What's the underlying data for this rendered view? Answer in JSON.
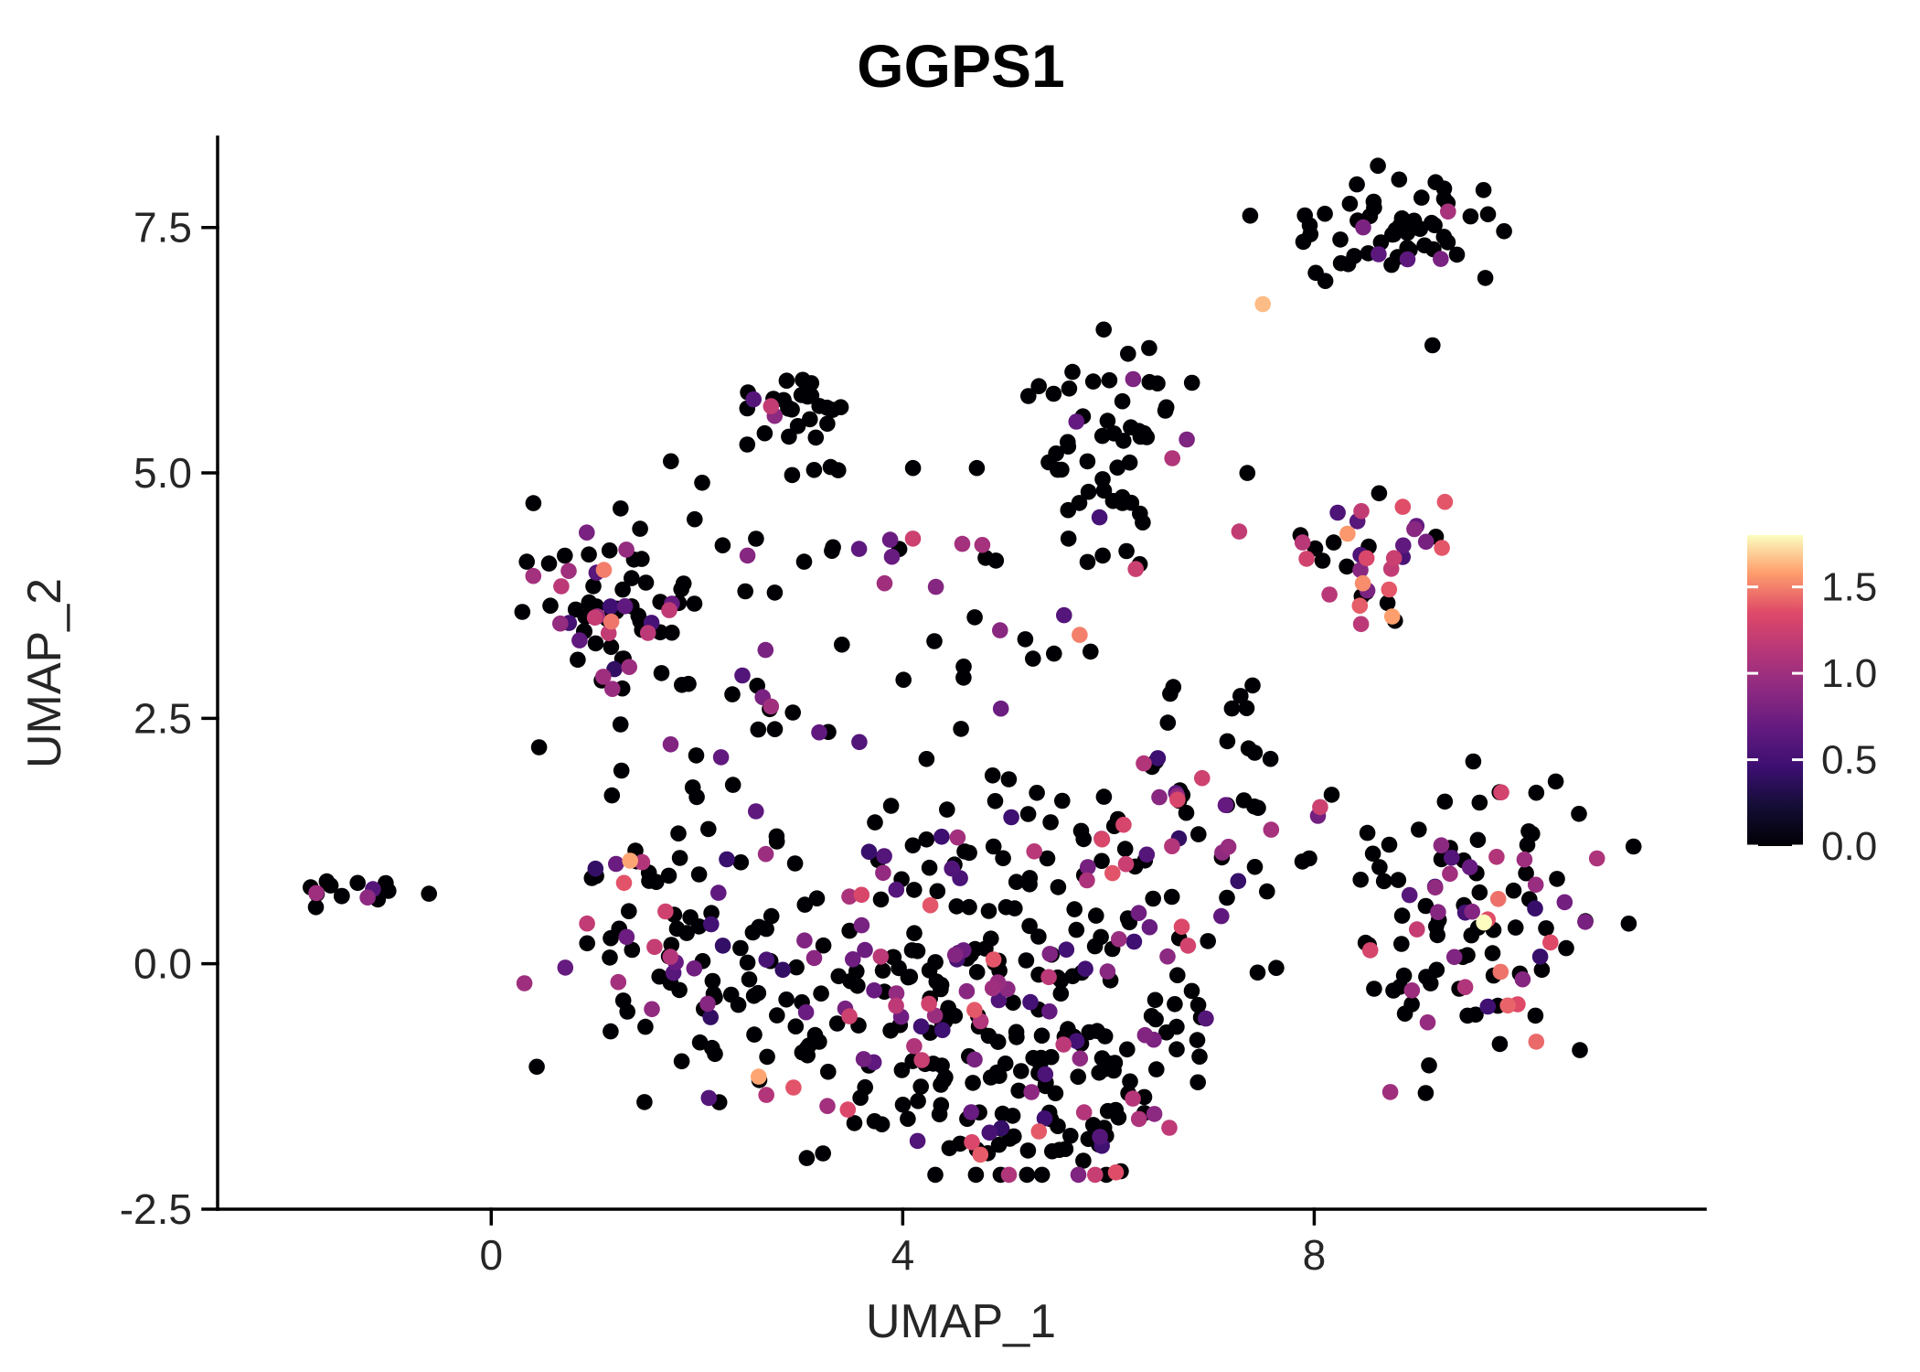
{
  "chart_data": {
    "type": "scatter",
    "title": "GGPS1",
    "xlabel": "UMAP_1",
    "ylabel": "UMAP_2",
    "xlim": [
      -2.66,
      11.8
    ],
    "ylim": [
      -2.5,
      8.42
    ],
    "xticks": [
      "0",
      "4",
      "8"
    ],
    "xtick_values": [
      0,
      4,
      8
    ],
    "yticks": [
      "-2.5",
      "0.0",
      "2.5",
      "5.0",
      "7.5"
    ],
    "ytick_values": [
      -2.5,
      0.0,
      2.5,
      5.0,
      7.5
    ],
    "grid": false,
    "legend_position": "right",
    "background": "#ffffff",
    "axis_color": "#000000",
    "zero_expression_color": "#000004",
    "seed": 7,
    "colorbar": {
      "colormap": "magma",
      "vmin": 0.0,
      "vmax": 1.8,
      "tick_labels": [
        "1.5",
        "1.0",
        "0.5",
        "0.0"
      ],
      "tick_values": [
        1.5,
        1.0,
        0.5,
        0.0
      ],
      "stops": [
        {
          "t": 0.0,
          "color": "#000004"
        },
        {
          "t": 0.13,
          "color": "#140e36"
        },
        {
          "t": 0.25,
          "color": "#3b0f70"
        },
        {
          "t": 0.38,
          "color": "#641a80"
        },
        {
          "t": 0.5,
          "color": "#8c2981"
        },
        {
          "t": 0.63,
          "color": "#b73779"
        },
        {
          "t": 0.75,
          "color": "#de4968"
        },
        {
          "t": 0.88,
          "color": "#fe9f6d"
        },
        {
          "t": 1.0,
          "color": "#fcfdbf"
        }
      ]
    },
    "clusters": [
      {
        "name": "far-left-island",
        "cx": -1.35,
        "cy": 0.72,
        "sx": 0.27,
        "sy": 0.09,
        "n": 13,
        "frac": 0.1,
        "vmin": 0.5,
        "vmax": 1.1
      },
      {
        "name": "left-cluster",
        "cx": 1.2,
        "cy": 3.7,
        "sx": 0.42,
        "sy": 0.55,
        "n": 75,
        "frac": 0.35,
        "vmin": 0.4,
        "vmax": 1.5
      },
      {
        "name": "top-middle-cluster",
        "cx": 2.95,
        "cy": 5.62,
        "sx": 0.3,
        "sy": 0.28,
        "n": 30,
        "frac": 0.1,
        "vmin": 0.5,
        "vmax": 1.2
      },
      {
        "name": "center-top-cluster",
        "cx": 6.05,
        "cy": 5.3,
        "sx": 0.42,
        "sy": 0.45,
        "n": 52,
        "frac": 0.06,
        "vmin": 0.5,
        "vmax": 1.2
      },
      {
        "name": "top-right-cluster-a",
        "cx": 8.35,
        "cy": 7.5,
        "sx": 0.3,
        "sy": 0.26,
        "n": 18,
        "frac": 0.18,
        "vmin": 0.5,
        "vmax": 1.3
      },
      {
        "name": "top-right-cluster-b",
        "cx": 9.05,
        "cy": 7.5,
        "sx": 0.32,
        "sy": 0.28,
        "n": 40,
        "frac": 0.1,
        "vmin": 0.5,
        "vmax": 1.1
      },
      {
        "name": "right-middle-cluster",
        "cx": 8.6,
        "cy": 4.15,
        "sx": 0.35,
        "sy": 0.4,
        "n": 38,
        "frac": 0.5,
        "vmin": 0.5,
        "vmax": 1.7
      },
      {
        "name": "right-bottom-cluster",
        "cx": 9.6,
        "cy": 0.45,
        "sx": 0.55,
        "sy": 0.75,
        "n": 105,
        "frac": 0.32,
        "vmin": 0.4,
        "vmax": 1.5
      },
      {
        "name": "mid-band",
        "cx": 4.2,
        "cy": 4.22,
        "sx": 1.25,
        "sy": 0.12,
        "n": 18,
        "frac": 0.65,
        "vmin": 0.5,
        "vmax": 1.4
      },
      {
        "name": "mid-sparse",
        "cx": 4.5,
        "cy": 3.3,
        "sx": 1.3,
        "sy": 0.45,
        "n": 20,
        "frac": 0.4,
        "vmin": 0.5,
        "vmax": 1.5
      },
      {
        "name": "left-link",
        "cx": 2.4,
        "cy": 2.4,
        "sx": 0.4,
        "sy": 0.4,
        "n": 12,
        "frac": 0.25,
        "vmin": 0.5,
        "vmax": 1.1
      },
      {
        "name": "right-link",
        "cx": 7.6,
        "cy": 1.5,
        "sx": 0.3,
        "sy": 0.55,
        "n": 12,
        "frac": 0.3,
        "vmin": 0.5,
        "vmax": 1.3
      },
      {
        "name": "blob-left-arm",
        "cx": 1.7,
        "cy": 0.6,
        "sx": 0.5,
        "sy": 0.9,
        "n": 70,
        "frac": 0.3,
        "vmin": 0.4,
        "vmax": 1.4
      },
      {
        "name": "blob-mid-left",
        "cx": 3.0,
        "cy": -0.3,
        "sx": 0.7,
        "sy": 0.8,
        "n": 60,
        "frac": 0.3,
        "vmin": 0.4,
        "vmax": 1.4
      },
      {
        "name": "blob-bottom-left",
        "cx": 4.3,
        "cy": -0.8,
        "sx": 0.8,
        "sy": 0.6,
        "n": 80,
        "frac": 0.3,
        "vmin": 0.4,
        "vmax": 1.4
      },
      {
        "name": "blob-bottom-right",
        "cx": 5.5,
        "cy": -0.9,
        "sx": 0.7,
        "sy": 0.6,
        "n": 70,
        "frac": 0.28,
        "vmin": 0.4,
        "vmax": 1.4
      },
      {
        "name": "blob-center",
        "cx": 4.8,
        "cy": 0.8,
        "sx": 1.0,
        "sy": 0.7,
        "n": 80,
        "frac": 0.3,
        "vmin": 0.4,
        "vmax": 1.4
      },
      {
        "name": "blob-right",
        "cx": 6.3,
        "cy": 0.5,
        "sx": 0.6,
        "sy": 0.9,
        "n": 60,
        "frac": 0.28,
        "vmin": 0.4,
        "vmax": 1.4
      },
      {
        "name": "blob-upper-right",
        "cx": 6.9,
        "cy": 1.6,
        "sx": 0.4,
        "sy": 0.5,
        "n": 25,
        "frac": 0.3,
        "vmin": 0.4,
        "vmax": 1.4
      },
      {
        "name": "blob-bottom-tail",
        "cx": 5.0,
        "cy": -1.6,
        "sx": 0.8,
        "sy": 0.25,
        "n": 30,
        "frac": 0.25,
        "vmin": 0.4,
        "vmax": 1.4
      }
    ],
    "extra_points": [
      {
        "x": 7.5,
        "y": 6.72,
        "v": 1.65
      },
      {
        "x": 9.15,
        "y": 6.3,
        "v": 0
      },
      {
        "x": -1.7,
        "y": 0.72,
        "v": 1.0
      },
      {
        "x": -1.15,
        "y": 0.76,
        "v": 0.6
      },
      {
        "x": 2.55,
        "y": 5.75,
        "v": 0.6
      },
      {
        "x": 2.72,
        "y": 5.68,
        "v": 1.2
      },
      {
        "x": 6.62,
        "y": 5.15,
        "v": 1.1
      },
      {
        "x": 4.1,
        "y": 5.05,
        "v": 0
      },
      {
        "x": 4.72,
        "y": 5.05,
        "v": 0
      },
      {
        "x": 2.05,
        "y": 4.9,
        "v": 0
      },
      {
        "x": 9.65,
        "y": 0.42,
        "v": 1.8
      },
      {
        "x": 5.72,
        "y": 3.35,
        "v": 1.5
      },
      {
        "x": 2.6,
        "y": -1.15,
        "v": 1.6
      },
      {
        "x": 1.35,
        "y": 1.05,
        "v": 1.6
      },
      {
        "x": 6.6,
        "y": 2.75,
        "v": 0
      },
      {
        "x": 7.2,
        "y": 2.6,
        "v": 0
      },
      {
        "x": 7.35,
        "y": 5.0,
        "v": 0
      }
    ]
  }
}
